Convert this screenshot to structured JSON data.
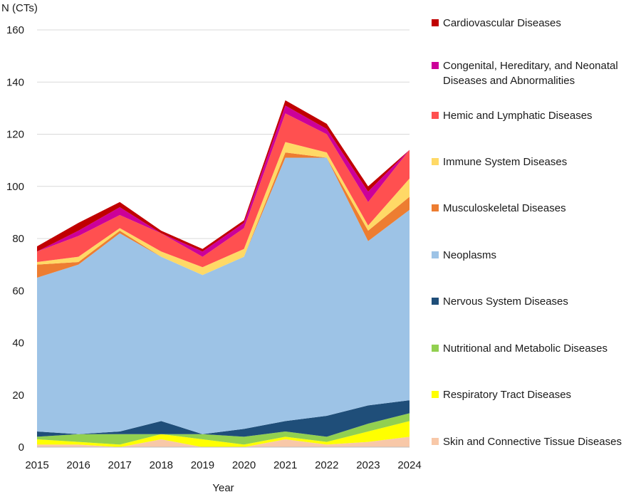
{
  "chart_data": {
    "type": "area",
    "stacked": true,
    "title": "",
    "ylabel": "N (CTs)",
    "xlabel": "Year",
    "ylim": [
      0,
      160
    ],
    "yticks": [
      0,
      20,
      40,
      60,
      80,
      100,
      120,
      140,
      160
    ],
    "grid": true,
    "legend_position": "right",
    "x": [
      "2015",
      "2016",
      "2017",
      "2018",
      "2019",
      "2020",
      "2021",
      "2022",
      "2023",
      "2024"
    ],
    "series": [
      {
        "name": "Skin and Connective Tissue Diseases",
        "color": "#f8c8a8",
        "values": [
          1,
          1,
          0,
          3,
          0,
          0,
          3,
          1,
          2,
          4
        ]
      },
      {
        "name": "Respiratory Tract Diseases",
        "color": "#ffff00",
        "values": [
          2,
          1,
          1,
          2,
          3,
          1,
          1,
          1,
          4,
          6
        ]
      },
      {
        "name": "Nutritional and Metabolic Diseases",
        "color": "#92d050",
        "values": [
          1,
          3,
          4,
          0,
          2,
          3,
          2,
          2,
          3,
          3
        ]
      },
      {
        "name": "Nervous System Diseases",
        "color": "#1f4e79",
        "values": [
          2,
          0,
          1,
          5,
          0,
          3,
          4,
          8,
          7,
          5
        ]
      },
      {
        "name": "Neoplasms",
        "color": "#9dc3e6",
        "values": [
          59,
          65,
          76,
          63,
          61,
          66,
          101,
          99,
          63,
          73
        ]
      },
      {
        "name": "Musculoskeletal Diseases",
        "color": "#ed7d31",
        "values": [
          5,
          1,
          1,
          0,
          0,
          0,
          2,
          0,
          4,
          5
        ]
      },
      {
        "name": "Immune System Diseases",
        "color": "#ffd966",
        "values": [
          1,
          2,
          1,
          2,
          3,
          3,
          4,
          2,
          2,
          7
        ]
      },
      {
        "name": "Hemic and Lymphatic Diseases",
        "color": "#ff5050",
        "values": [
          4,
          8,
          5,
          7,
          4,
          8,
          11,
          7,
          9,
          11
        ]
      },
      {
        "name": "Congenital, Hereditary, and Neonatal Diseases and Abnormalities",
        "color": "#cc0099",
        "values": [
          0,
          2,
          3,
          0,
          2,
          2,
          3,
          2,
          4,
          0
        ]
      },
      {
        "name": "Cardiovascular Diseases",
        "color": "#c00000",
        "values": [
          2,
          3,
          2,
          1,
          1,
          1,
          2,
          2,
          2,
          0
        ]
      }
    ]
  }
}
